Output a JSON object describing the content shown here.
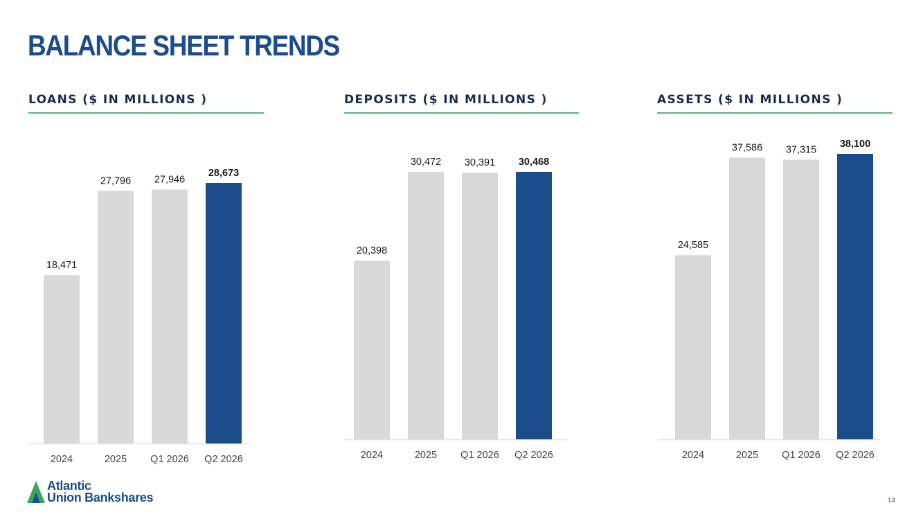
{
  "page": {
    "title": "BALANCE SHEET TRENDS",
    "page_number": "14"
  },
  "logo": {
    "line1": "Atlantic",
    "line2": "Union Bankshares",
    "icon": "atlantic-union-a-mark-icon"
  },
  "colors": {
    "title": "#1b4c8c",
    "highlight_bar": "#1b4c8c",
    "bar": "#d9d9d9",
    "heading_rule": "#5cb37c",
    "logo_green": "#3aa757"
  },
  "chart_data": [
    {
      "type": "bar",
      "title": "LOANS ($ IN MILLIONS )",
      "categories": [
        "2024",
        "2025",
        "Q1 2026",
        "Q2 2026"
      ],
      "values": [
        18471,
        27796,
        27946,
        28673
      ],
      "labels": [
        "18,471",
        "27,796",
        "27,946",
        "28,673"
      ],
      "highlight_index": 3,
      "xlabel": "",
      "ylabel": "",
      "grid": false,
      "legend": "none"
    },
    {
      "type": "bar",
      "title": "DEPOSITS ($ IN MILLIONS )",
      "categories": [
        "2024",
        "2025",
        "Q1 2026",
        "Q2 2026"
      ],
      "values": [
        20398,
        30472,
        30391,
        30468
      ],
      "labels": [
        "20,398",
        "30,472",
        "30,391",
        "30,468"
      ],
      "highlight_index": 3,
      "xlabel": "",
      "ylabel": "",
      "grid": false,
      "legend": "none"
    },
    {
      "type": "bar",
      "title": "ASSETS ($ IN MILLIONS )",
      "categories": [
        "2024",
        "2025",
        "Q1 2026",
        "Q2 2026"
      ],
      "values": [
        24585,
        37586,
        37315,
        38100
      ],
      "labels": [
        "24,585",
        "37,586",
        "37,315",
        "38,100"
      ],
      "highlight_index": 3,
      "xlabel": "",
      "ylabel": "",
      "grid": false,
      "legend": "none"
    }
  ]
}
